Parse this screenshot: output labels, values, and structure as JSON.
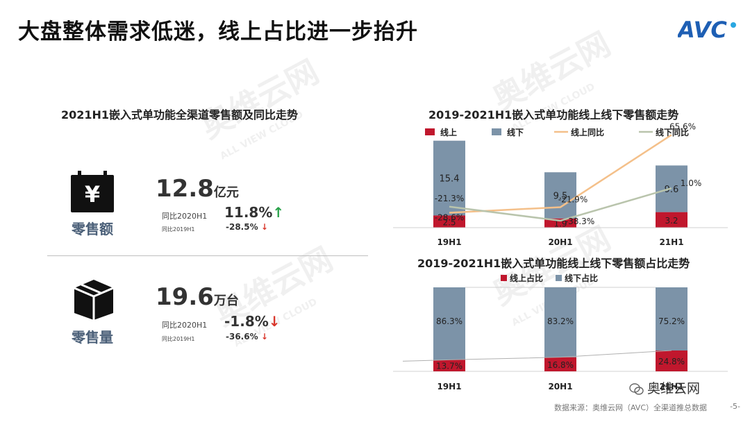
{
  "header": {
    "title": "大盘整体需求低迷，线上占比进一步抬升",
    "logo_text": "AVC"
  },
  "watermark": {
    "text": "奥维云网",
    "sub": "ALL VIEW CLOUD"
  },
  "left_panel": {
    "title": "2021H1嵌入式单功能全渠道零售额及同比走势",
    "retail_value": {
      "label": "零售额",
      "icon": "yen-tag-icon",
      "value": "12.8",
      "unit": "亿元",
      "yoy_2020_label": "同比2020H1",
      "yoy_2020_value": "11.8%",
      "yoy_2020_arrow": "↑",
      "yoy_2019_label": "同比2019H1",
      "yoy_2019_value": "-28.5%",
      "yoy_2019_arrow": "↓"
    },
    "retail_volume": {
      "label": "零售量",
      "icon": "box-icon",
      "value": "19.6",
      "unit": "万台",
      "yoy_2020_label": "同比2020H1",
      "yoy_2020_value": "-1.8%",
      "yoy_2020_arrow": "↓",
      "yoy_2019_label": "同比2019H1",
      "yoy_2019_value": "-36.6%",
      "yoy_2019_arrow": "↓"
    }
  },
  "colors": {
    "online": "#c0172d",
    "offline": "#7c93a8",
    "online_yoy": "#f4c08a",
    "offline_yoy": "#b9c4ac",
    "share_line": "#b0b0b0",
    "label_blue": "#4a5f78"
  },
  "chart_data": [
    {
      "type": "bar",
      "stacked": true,
      "title": "2019-2021H1嵌入式单功能线上线下零售额走势",
      "categories": [
        "19H1",
        "20H1",
        "21H1"
      ],
      "series": [
        {
          "name": "线上",
          "kind": "bar",
          "values": [
            2.5,
            1.9,
            3.2
          ],
          "labels": [
            "2.5",
            "1.9",
            "3.2"
          ]
        },
        {
          "name": "线下",
          "kind": "bar",
          "values": [
            15.4,
            9.5,
            9.6
          ],
          "labels": [
            "15.4",
            "9.5",
            "9.6"
          ]
        },
        {
          "name": "线上同比",
          "kind": "line",
          "values": [
            -28.6,
            -21.9,
            65.6
          ],
          "labels": [
            "-28.6%",
            "-21.9%",
            "65.6%"
          ]
        },
        {
          "name": "线下同比",
          "kind": "line",
          "values": [
            -21.3,
            -38.3,
            1.0
          ],
          "labels": [
            "-21.3%",
            "-38.3%",
            "1.0%"
          ]
        }
      ],
      "legend_position": "top",
      "grid": false
    },
    {
      "type": "bar",
      "stacked": true,
      "title": "2019-2021H1嵌入式单功能线上线下零售额占比走势",
      "categories": [
        "19H1",
        "20H1",
        "21H1"
      ],
      "series": [
        {
          "name": "线上占比",
          "kind": "bar",
          "values": [
            13.7,
            16.8,
            24.8
          ],
          "labels": [
            "13.7%",
            "16.8%",
            "24.8%"
          ]
        },
        {
          "name": "线下占比",
          "kind": "bar",
          "values": [
            86.3,
            83.2,
            75.2
          ],
          "labels": [
            "86.3%",
            "83.2%",
            "75.2%"
          ]
        }
      ],
      "ylim": [
        0,
        100
      ],
      "legend_position": "top",
      "grid": false
    }
  ],
  "footer": {
    "source": "数据来源：奥维云网（AVC）全渠道推总数据",
    "page": "-5-",
    "wechat": "奥维云网"
  }
}
